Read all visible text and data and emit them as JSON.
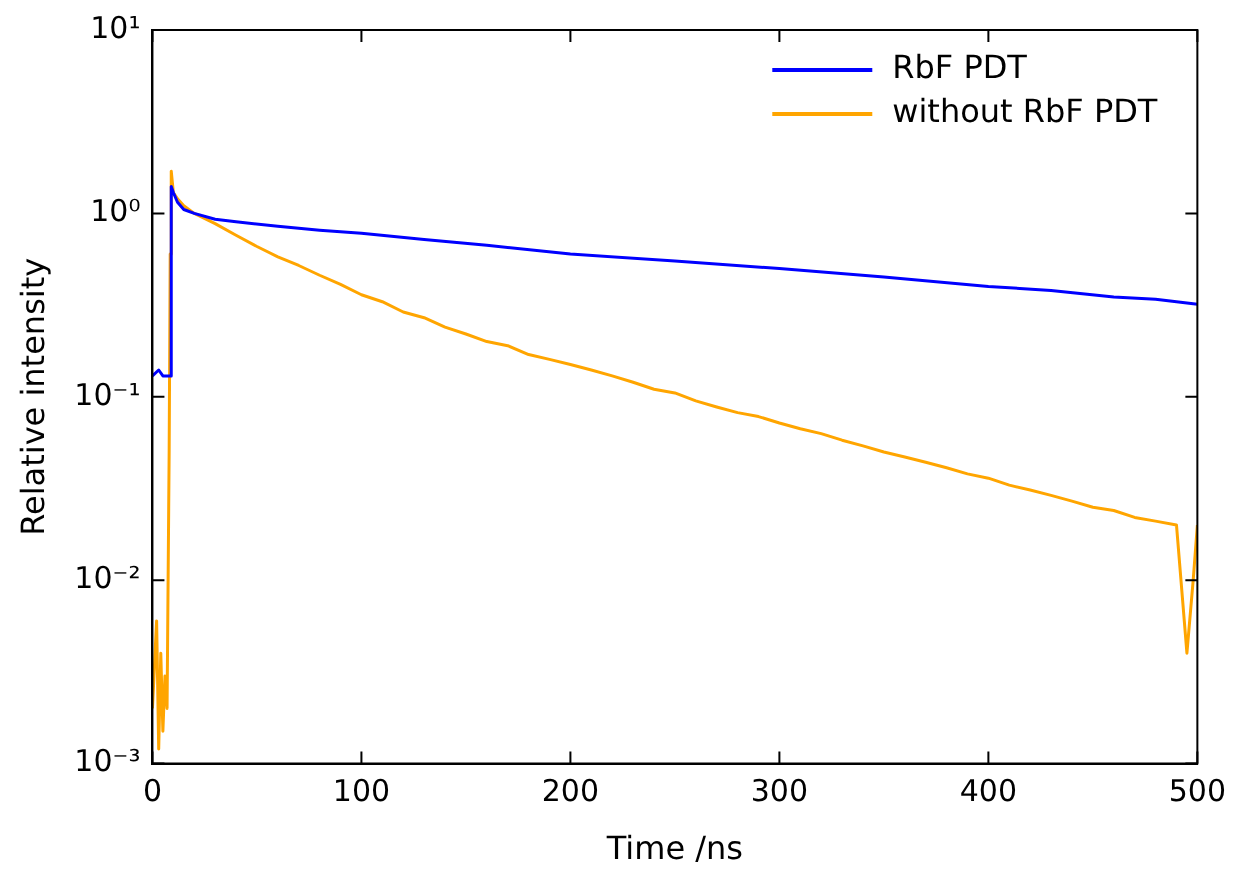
{
  "chart_data": {
    "type": "line",
    "xlabel": "Time /ns",
    "ylabel": "Relative intensity",
    "log": "y",
    "grid": false,
    "legend": "top right",
    "marker": "none",
    "line_style": "solid",
    "xlim": [
      0,
      500
    ],
    "xticks": [
      0,
      100,
      200,
      300,
      400,
      500
    ],
    "ylim": [
      0.001,
      10
    ],
    "yticks": [
      {
        "value": 0.001,
        "label": "10⁻³"
      },
      {
        "value": 0.01,
        "label": "10⁻²"
      },
      {
        "value": 0.1,
        "label": "10⁻¹"
      },
      {
        "value": 1,
        "label": "10⁰"
      },
      {
        "value": 10,
        "label": "10¹"
      }
    ],
    "series": [
      {
        "name": "RbF PDT",
        "color": "#0000ff",
        "x": [
          0,
          3,
          5,
          8,
          8.5,
          9,
          10,
          12,
          15,
          20,
          30,
          40,
          60,
          80,
          100,
          130,
          160,
          200,
          250,
          300,
          350,
          400,
          430,
          460,
          480,
          490,
          500
        ],
        "values": [
          0.13,
          0.14,
          0.13,
          0.13,
          0.13,
          1.4,
          1.3,
          1.15,
          1.05,
          1.0,
          0.93,
          0.9,
          0.85,
          0.81,
          0.78,
          0.72,
          0.67,
          0.6,
          0.55,
          0.5,
          0.45,
          0.4,
          0.38,
          0.35,
          0.34,
          0.33,
          0.32
        ]
      },
      {
        "name": "without RbF PDT",
        "color": "#ffa500",
        "x": [
          0,
          2,
          3,
          4,
          5,
          6,
          7,
          8,
          8.5,
          9,
          10,
          12,
          15,
          20,
          30,
          40,
          50,
          60,
          70,
          80,
          90,
          100,
          110,
          120,
          130,
          140,
          150,
          160,
          170,
          180,
          190,
          200,
          210,
          220,
          230,
          240,
          250,
          260,
          270,
          280,
          290,
          300,
          310,
          320,
          330,
          340,
          350,
          360,
          370,
          380,
          390,
          400,
          410,
          420,
          430,
          440,
          450,
          460,
          470,
          480,
          490,
          495,
          498,
          500
        ],
        "values": [
          0.002,
          0.006,
          0.0012,
          0.004,
          0.0015,
          0.003,
          0.002,
          0.05,
          0.6,
          1.7,
          1.3,
          1.2,
          1.1,
          1.0,
          0.88,
          0.76,
          0.66,
          0.58,
          0.52,
          0.46,
          0.41,
          0.36,
          0.33,
          0.29,
          0.27,
          0.24,
          0.22,
          0.2,
          0.19,
          0.17,
          0.16,
          0.15,
          0.14,
          0.13,
          0.12,
          0.11,
          0.105,
          0.095,
          0.088,
          0.082,
          0.078,
          0.072,
          0.067,
          0.063,
          0.058,
          0.054,
          0.05,
          0.047,
          0.044,
          0.041,
          0.038,
          0.036,
          0.033,
          0.031,
          0.029,
          0.027,
          0.025,
          0.024,
          0.022,
          0.021,
          0.02,
          0.004,
          0.01,
          0.02
        ]
      }
    ]
  }
}
